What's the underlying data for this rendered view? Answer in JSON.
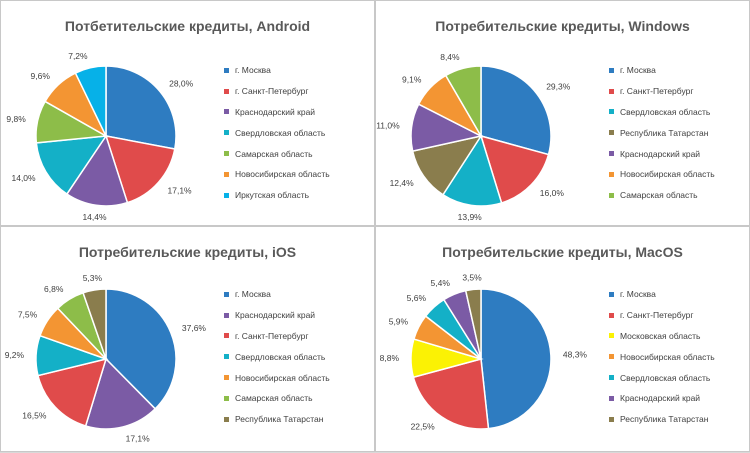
{
  "colors": {
    "moscow": "#2e7cc1",
    "spb": "#e04b4b",
    "krasnodar": "#7b5ba5",
    "sverdlovsk": "#14b0c7",
    "samara": "#8dbd49",
    "novosibirsk": "#f39533",
    "irkutsk": "#06b1e8",
    "tatarstan": "#8a7d4d",
    "moscow_oblast": "#fbf204"
  },
  "chart_data": [
    {
      "type": "pie",
      "title": "Потбетительские кредиты, Android",
      "slices": [
        {
          "name": "г. Москва",
          "value": 28.0,
          "label": "28,0%",
          "color_key": "moscow"
        },
        {
          "name": "г. Санкт-Петербург",
          "value": 17.1,
          "label": "17,1%",
          "color_key": "spb"
        },
        {
          "name": "Краснодарский край",
          "value": 14.4,
          "label": "14,4%",
          "color_key": "krasnodar"
        },
        {
          "name": "Свердловская область",
          "value": 14.0,
          "label": "14,0%",
          "color_key": "sverdlovsk"
        },
        {
          "name": "Самарская область",
          "value": 9.8,
          "label": "9,8%",
          "color_key": "samara"
        },
        {
          "name": "Новосибирская область",
          "value": 9.6,
          "label": "9,6%",
          "color_key": "novosibirsk"
        },
        {
          "name": "Иркутская область",
          "value": 7.2,
          "label": "7,2%",
          "color_key": "irkutsk"
        }
      ]
    },
    {
      "type": "pie",
      "title": "Потребительские кредиты, Windows",
      "slices": [
        {
          "name": "г. Москва",
          "value": 29.3,
          "label": "29,3%",
          "color_key": "moscow"
        },
        {
          "name": "г. Санкт-Петербург",
          "value": 16.0,
          "label": "16,0%",
          "color_key": "spb"
        },
        {
          "name": "Свердловская область",
          "value": 13.9,
          "label": "13,9%",
          "color_key": "sverdlovsk"
        },
        {
          "name": "Республика Татарстан",
          "value": 12.4,
          "label": "12,4%",
          "color_key": "tatarstan"
        },
        {
          "name": "Краснодарский край",
          "value": 11.0,
          "label": "11,0%",
          "color_key": "krasnodar"
        },
        {
          "name": "Новосибирская область",
          "value": 9.1,
          "label": "9,1%",
          "color_key": "novosibirsk"
        },
        {
          "name": "Самарская область",
          "value": 8.4,
          "label": "8,4%",
          "color_key": "samara"
        }
      ]
    },
    {
      "type": "pie",
      "title": "Потребительские кредиты, iOS",
      "slices": [
        {
          "name": "г. Москва",
          "value": 37.6,
          "label": "37,6%",
          "color_key": "moscow"
        },
        {
          "name": "Краснодарский край",
          "value": 17.1,
          "label": "17,1%",
          "color_key": "krasnodar"
        },
        {
          "name": "г. Санкт-Петербург",
          "value": 16.5,
          "label": "16,5%",
          "color_key": "spb"
        },
        {
          "name": "Свердловская область",
          "value": 9.2,
          "label": "9,2%",
          "color_key": "sverdlovsk"
        },
        {
          "name": "Новосибирская область",
          "value": 7.5,
          "label": "7,5%",
          "color_key": "novosibirsk"
        },
        {
          "name": "Самарская область",
          "value": 6.8,
          "label": "6,8%",
          "color_key": "samara"
        },
        {
          "name": "Республика Татарстан",
          "value": 5.3,
          "label": "5,3%",
          "color_key": "tatarstan"
        }
      ]
    },
    {
      "type": "pie",
      "title": "Потребительские кредиты, MacOS",
      "slices": [
        {
          "name": "г. Москва",
          "value": 48.3,
          "label": "48,3%",
          "color_key": "moscow"
        },
        {
          "name": "г. Санкт-Петербург",
          "value": 22.5,
          "label": "22,5%",
          "color_key": "spb"
        },
        {
          "name": "Московская область",
          "value": 8.8,
          "label": "8,8%",
          "color_key": "moscow_oblast"
        },
        {
          "name": "Новосибирская область",
          "value": 5.9,
          "label": "5,9%",
          "color_key": "novosibirsk"
        },
        {
          "name": "Свердловская область",
          "value": 5.6,
          "label": "5,6%",
          "color_key": "sverdlovsk"
        },
        {
          "name": "Краснодарский край",
          "value": 5.4,
          "label": "5,4%",
          "color_key": "krasnodar"
        },
        {
          "name": "Республика Татарстан",
          "value": 3.5,
          "label": "3,5%",
          "color_key": "tatarstan"
        }
      ]
    }
  ]
}
